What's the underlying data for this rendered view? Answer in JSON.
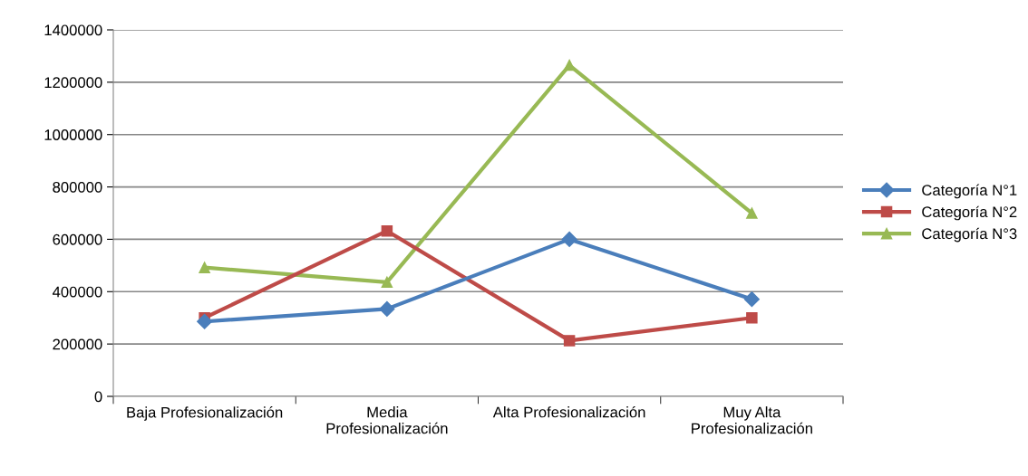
{
  "chart_data": {
    "type": "line",
    "categories": [
      "Baja Profesionalización",
      "Media\nProfesionalización",
      "Alta Profesionalización",
      "Muy Alta\nProfesionalización"
    ],
    "series": [
      {
        "name": "Categoría N°1",
        "color": "#4a7ebb",
        "marker": "diamond",
        "values": [
          286000,
          334000,
          600000,
          371000
        ]
      },
      {
        "name": "Categoría N°2",
        "color": "#be4b48",
        "marker": "square",
        "values": [
          300000,
          632000,
          213000,
          300000
        ]
      },
      {
        "name": "Categoría N°3",
        "color": "#98b954",
        "marker": "triangle",
        "values": [
          492000,
          436000,
          1265000,
          700000
        ]
      }
    ],
    "ylim": [
      0,
      1400000
    ],
    "yticks": [
      0,
      200000,
      400000,
      600000,
      800000,
      1000000,
      1200000,
      1400000
    ],
    "grid": "y",
    "legend": "right",
    "line_style": "solid"
  }
}
